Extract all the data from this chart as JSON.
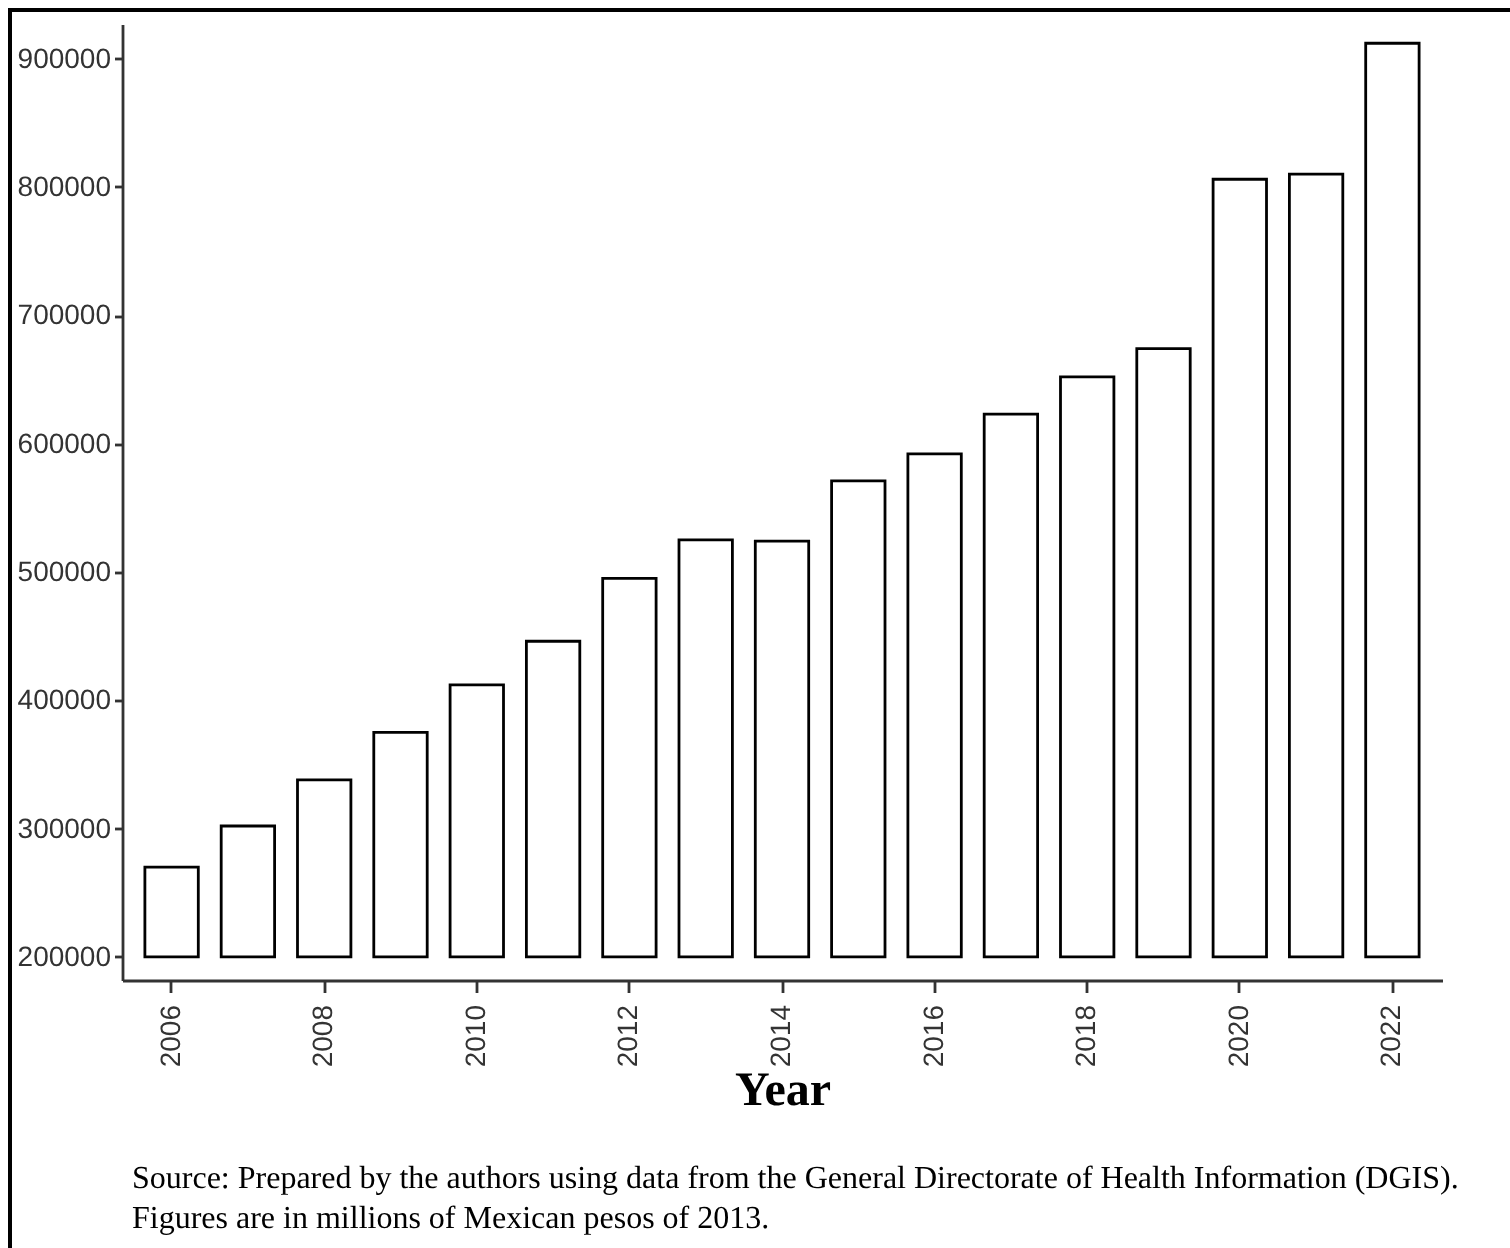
{
  "chart_data": {
    "type": "bar",
    "xlabel": "Year",
    "categories": [
      "2006",
      null,
      "2008",
      null,
      "2010",
      null,
      "2012",
      null,
      "2014",
      null,
      "2016",
      null,
      "2018",
      null,
      "2020",
      null,
      "2022"
    ],
    "base": [
      200000,
      200000,
      200000,
      200000,
      200000,
      200000,
      200000,
      200000,
      200000,
      200000,
      200000,
      200000,
      200000,
      200000,
      200000,
      200000,
      200000
    ],
    "values": [
      70000,
      102000,
      138000,
      175000,
      212000,
      246000,
      295000,
      325000,
      324000,
      371000,
      392000,
      423000,
      452000,
      474000,
      606000,
      610000,
      712000
    ],
    "color": "#ffffff",
    "ylim": [
      182000,
      927000
    ],
    "yticks": [
      200000,
      300000,
      400000,
      500000,
      600000,
      700000,
      800000,
      900000
    ],
    "grid": false,
    "annotations": [
      "Source: Prepared by the authors using data from the General Directorate of Health Information (DGIS). Figures are in millions of Mexican pesos of 2013."
    ]
  }
}
